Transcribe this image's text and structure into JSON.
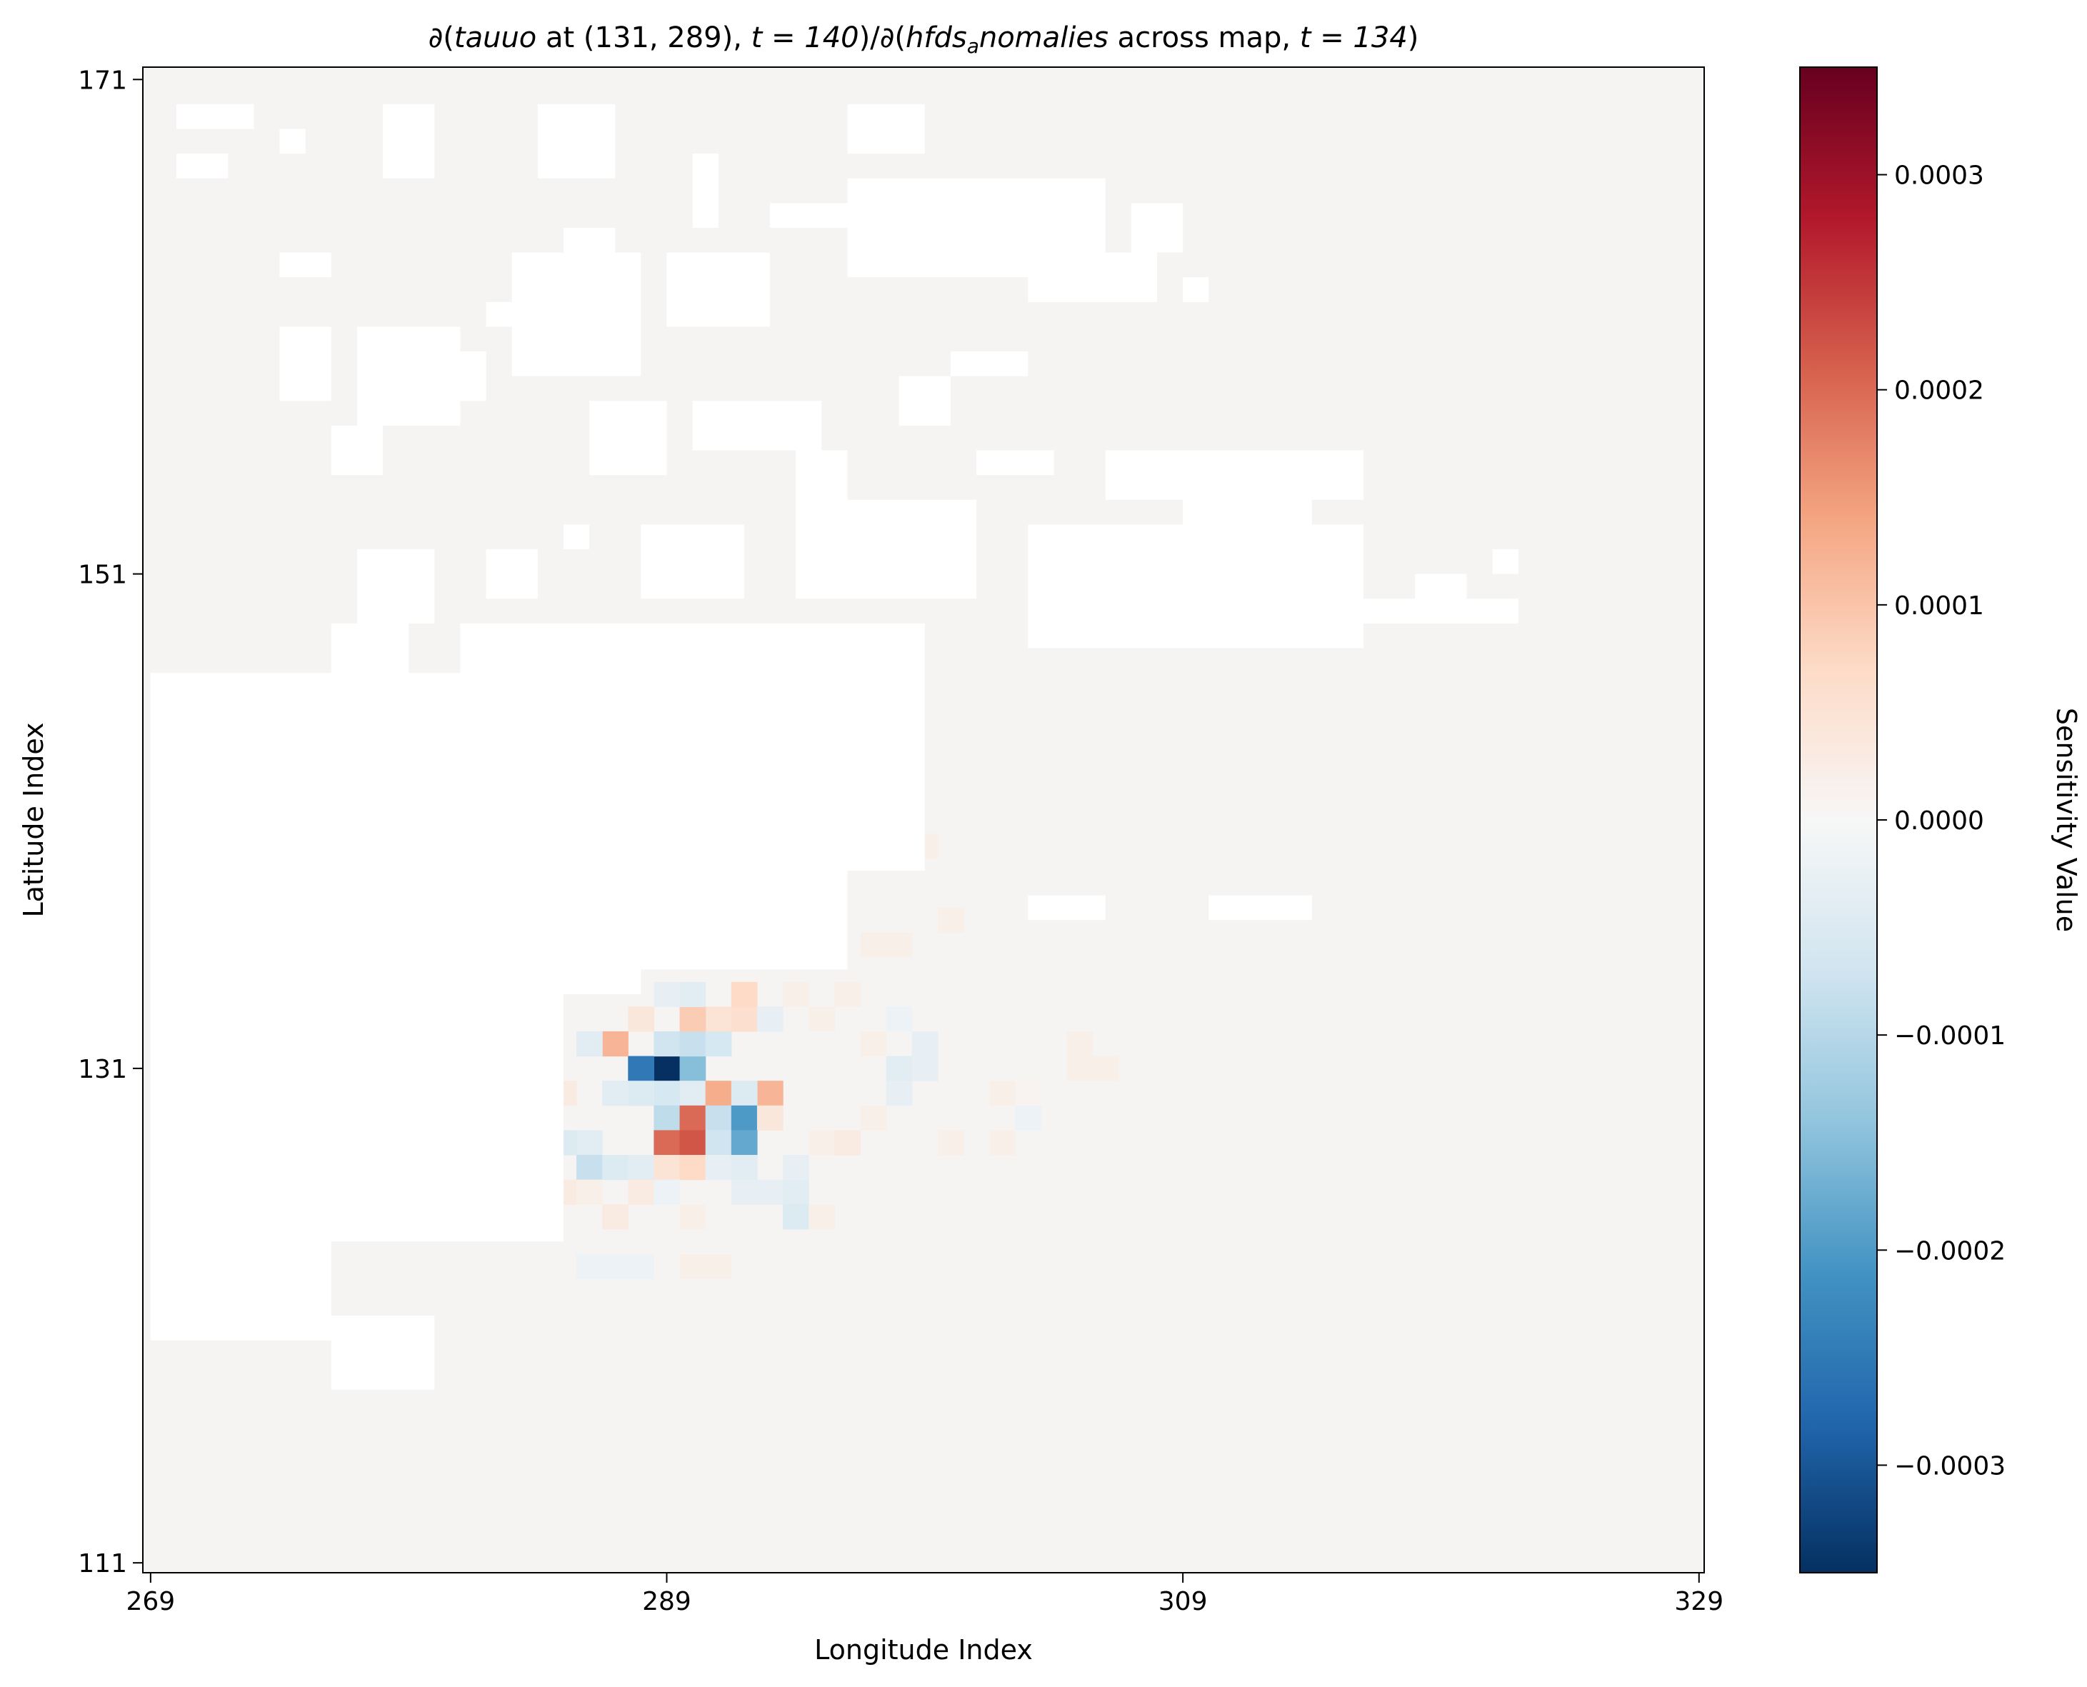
{
  "chart_data": {
    "type": "heatmap",
    "title": "∂(tauuo at (131, 289), t = 140)/∂(hfds_anomalies across map, t = 134)",
    "title_parts": {
      "pre": "∂(",
      "var1": "tauuo",
      "mid1": " at ",
      "coord": "(131, 289), ",
      "t1": "t = 140",
      "mid2": ")/∂(",
      "var2": "hfds",
      "sub": "a",
      "var3": "nomalies",
      "mid3": " across map, ",
      "t2": "t = 134",
      "post": ")"
    },
    "xlabel": "Longitude Index",
    "ylabel": "Latitude Index",
    "colorbar_label": "Sensitivity Value",
    "colormap": "RdBu_r",
    "xlim": [
      269,
      329
    ],
    "ylim": [
      111,
      171
    ],
    "vmin": -0.00035,
    "vmax": 0.00035,
    "x_ticks": [
      "269",
      "289",
      "309",
      "329"
    ],
    "y_ticks": [
      "111",
      "131",
      "151",
      "171"
    ],
    "colorbar_ticks": [
      "−0.0003",
      "−0.0002",
      "−0.0001",
      "0.0000",
      "0.0001",
      "0.0002",
      "0.0003"
    ],
    "cells": [
      [
        289,
        131,
        -0.00035
      ],
      [
        288,
        131,
        -0.00025
      ],
      [
        290,
        131,
        -0.00015
      ],
      [
        287,
        132,
        0.00012
      ],
      [
        286,
        132,
        -4e-05
      ],
      [
        289,
        132,
        -7e-05
      ],
      [
        290,
        132,
        -8e-05
      ],
      [
        291,
        132,
        -6e-05
      ],
      [
        291,
        133,
        5e-05
      ],
      [
        292,
        133,
        6e-05
      ],
      [
        290,
        133,
        9e-05
      ],
      [
        288,
        133,
        4e-05
      ],
      [
        289,
        134,
        -3e-05
      ],
      [
        290,
        134,
        -4e-05
      ],
      [
        292,
        134,
        7e-05
      ],
      [
        293,
        133,
        -3e-05
      ],
      [
        294,
        134,
        2e-05
      ],
      [
        290,
        130,
        -4e-05
      ],
      [
        291,
        130,
        0.00013
      ],
      [
        293,
        130,
        0.00012
      ],
      [
        292,
        130,
        -5e-05
      ],
      [
        289,
        130,
        -6e-05
      ],
      [
        288,
        130,
        -5e-05
      ],
      [
        287,
        130,
        -4e-05
      ],
      [
        284,
        130,
        6e-05
      ],
      [
        285,
        130,
        3e-05
      ],
      [
        289,
        129,
        -9e-05
      ],
      [
        290,
        129,
        0.0002
      ],
      [
        291,
        129,
        -8e-05
      ],
      [
        292,
        129,
        -0.0002
      ],
      [
        293,
        129,
        4e-05
      ],
      [
        289,
        128,
        0.0002
      ],
      [
        290,
        128,
        0.00022
      ],
      [
        291,
        128,
        -7e-05
      ],
      [
        292,
        128,
        -0.00018
      ],
      [
        286,
        128,
        -4e-05
      ],
      [
        285,
        128,
        -5e-05
      ],
      [
        284,
        129,
        4e-05
      ],
      [
        284,
        128,
        3e-05
      ],
      [
        286,
        127,
        -8e-05
      ],
      [
        287,
        127,
        -5e-05
      ],
      [
        288,
        127,
        -4e-05
      ],
      [
        289,
        127,
        5e-05
      ],
      [
        290,
        127,
        7e-05
      ],
      [
        291,
        127,
        -3e-05
      ],
      [
        292,
        127,
        -4e-05
      ],
      [
        294,
        127,
        -3e-05
      ],
      [
        285,
        126,
        3e-05
      ],
      [
        286,
        126,
        2e-05
      ],
      [
        288,
        126,
        3e-05
      ],
      [
        289,
        126,
        -2e-05
      ],
      [
        292,
        126,
        -3e-05
      ],
      [
        293,
        126,
        -3e-05
      ],
      [
        294,
        126,
        -4e-05
      ],
      [
        287,
        125,
        3e-05
      ],
      [
        290,
        125,
        2e-05
      ],
      [
        294,
        125,
        -5e-05
      ],
      [
        295,
        125,
        2e-05
      ],
      [
        295,
        128,
        2e-05
      ],
      [
        296,
        128,
        3e-05
      ],
      [
        297,
        129,
        2e-05
      ],
      [
        298,
        130,
        -3e-05
      ],
      [
        298,
        131,
        -4e-05
      ],
      [
        299,
        131,
        -3e-05
      ],
      [
        299,
        132,
        -3e-05
      ],
      [
        297,
        132,
        2e-05
      ],
      [
        295,
        133,
        2e-05
      ],
      [
        296,
        134,
        2e-05
      ],
      [
        298,
        133,
        -2e-05
      ],
      [
        302,
        130,
        2e-05
      ],
      [
        303,
        130,
        1e-05
      ],
      [
        305,
        131,
        2e-05
      ],
      [
        305,
        132,
        2e-05
      ],
      [
        306,
        131,
        2e-05
      ],
      [
        300,
        128,
        2e-05
      ],
      [
        302,
        128,
        2e-05
      ],
      [
        303,
        129,
        -2e-05
      ],
      [
        290,
        123,
        2e-05
      ],
      [
        291,
        123,
        2e-05
      ],
      [
        288,
        123,
        -2e-05
      ],
      [
        287,
        123,
        -2e-05
      ],
      [
        286,
        123,
        -2e-05
      ],
      [
        289,
        140,
        3e-05
      ],
      [
        293,
        141,
        2e-05
      ],
      [
        297,
        141,
        2e-05
      ],
      [
        296,
        140,
        -2e-05
      ],
      [
        299,
        140,
        2e-05
      ],
      [
        290,
        141,
        2e-05
      ],
      [
        297,
        136,
        2e-05
      ],
      [
        300,
        137,
        2e-05
      ],
      [
        298,
        136,
        2e-05
      ]
    ],
    "land": [
      [
        [
          277,
          157
        ],
        [
          281,
          161
        ]
      ],
      [
        [
          283,
          159
        ],
        [
          288,
          164
        ]
      ],
      [
        [
          289,
          161
        ],
        [
          293,
          164
        ]
      ],
      [
        [
          286,
          155
        ],
        [
          289,
          158
        ]
      ],
      [
        [
          290,
          156
        ],
        [
          295,
          158
        ]
      ],
      [
        [
          288,
          150
        ],
        [
          292,
          153
        ]
      ],
      [
        [
          277,
          149
        ],
        [
          280,
          152
        ]
      ],
      [
        [
          276,
          146
        ],
        [
          279,
          149
        ]
      ],
      [
        [
          294,
          150
        ],
        [
          301,
          154
        ]
      ],
      [
        [
          303,
          148
        ],
        [
          316,
          153
        ]
      ],
      [
        [
          306,
          154
        ],
        [
          316,
          156
        ]
      ],
      [
        [
          309,
          153
        ],
        [
          314,
          155
        ]
      ],
      [
        [
          296,
          163
        ],
        [
          306,
          167
        ]
      ],
      [
        [
          303,
          162
        ],
        [
          308,
          164
        ]
      ],
      [
        [
          301,
          155
        ],
        [
          304,
          156
        ]
      ],
      [
        [
          281,
          139
        ],
        [
          299,
          149
        ]
      ],
      [
        [
          281,
          135
        ],
        [
          296,
          140
        ]
      ],
      [
        [
          269,
          134
        ],
        [
          288,
          147
        ]
      ],
      [
        [
          269,
          124
        ],
        [
          285,
          134
        ]
      ],
      [
        [
          269,
          120
        ],
        [
          276,
          124
        ]
      ],
      [
        [
          276,
          118
        ],
        [
          280,
          121
        ]
      ],
      [
        [
          269,
          121
        ],
        [
          273,
          122
        ]
      ],
      [
        [
          273,
          120
        ],
        [
          277,
          121
        ]
      ],
      [
        [
          303,
          137
        ],
        [
          306,
          138
        ]
      ],
      [
        [
          310,
          137
        ],
        [
          314,
          138
        ]
      ],
      [
        [
          288,
          137
        ],
        [
          292,
          139
        ]
      ],
      [
        [
          282,
          144
        ],
        [
          287,
          146
        ]
      ],
      [
        [
          270,
          167
        ],
        [
          272,
          168
        ]
      ],
      [
        [
          274,
          163
        ],
        [
          276,
          164
        ]
      ],
      [
        [
          280,
          158
        ],
        [
          282,
          160
        ]
      ],
      [
        [
          270,
          169
        ],
        [
          273,
          170
        ]
      ],
      [
        [
          278,
          167
        ],
        [
          280,
          170
        ]
      ],
      [
        [
          284,
          167
        ],
        [
          287,
          170
        ]
      ],
      [
        [
          290,
          165
        ],
        [
          291,
          168
        ]
      ],
      [
        [
          296,
          168
        ],
        [
          299,
          170
        ]
      ],
      [
        [
          282,
          161
        ],
        [
          285,
          162
        ]
      ],
      [
        [
          287,
          162
        ],
        [
          288,
          163
        ]
      ],
      [
        [
          285,
          164
        ],
        [
          287,
          165
        ]
      ],
      [
        [
          274,
          168
        ],
        [
          275,
          169
        ]
      ],
      [
        [
          274,
          158
        ],
        [
          276,
          161
        ]
      ],
      [
        [
          276,
          155
        ],
        [
          278,
          157
        ]
      ],
      [
        [
          282,
          150
        ],
        [
          284,
          152
        ]
      ],
      [
        [
          284,
          148
        ],
        [
          286,
          149
        ]
      ],
      [
        [
          282,
          147
        ],
        [
          283,
          148
        ]
      ],
      [
        [
          285,
          152
        ],
        [
          286,
          153
        ]
      ],
      [
        [
          294,
          154
        ],
        [
          296,
          156
        ]
      ],
      [
        [
          298,
          157
        ],
        [
          300,
          159
        ]
      ],
      [
        [
          300,
          159
        ],
        [
          303,
          160
        ]
      ],
      [
        [
          293,
          165
        ],
        [
          296,
          166
        ]
      ],
      [
        [
          307,
          164
        ],
        [
          309,
          166
        ]
      ],
      [
        [
          309,
          162
        ],
        [
          310,
          163
        ]
      ],
      [
        [
          316,
          149
        ],
        [
          322,
          150
        ]
      ],
      [
        [
          318,
          150
        ],
        [
          320,
          151
        ]
      ],
      [
        [
          321,
          151
        ],
        [
          322,
          152
        ]
      ]
    ]
  }
}
